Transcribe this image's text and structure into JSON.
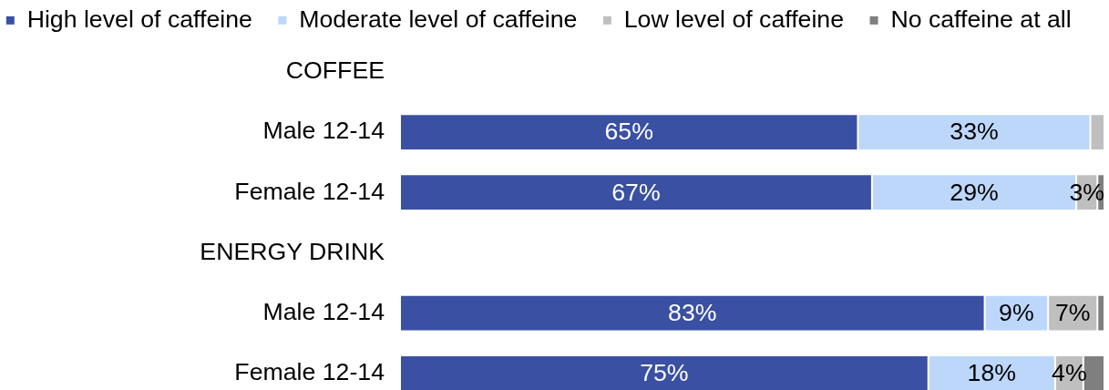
{
  "chart_data": {
    "type": "bar",
    "orientation": "horizontal",
    "stacked": true,
    "categories": [
      "COFFEE",
      "Male 12-14",
      "Female 12-14",
      "ENERGY DRINK",
      "Male 12-14",
      "Female 12-14"
    ],
    "series": [
      {
        "name": "High level of caffeine",
        "color": "#3a50a2",
        "values": [
          null,
          65,
          67,
          null,
          83,
          75
        ],
        "value_labels": [
          null,
          "65%",
          "67%",
          null,
          "83%",
          "75%"
        ]
      },
      {
        "name": "Moderate level of caffeine",
        "color": "#bdd7fb",
        "values": [
          null,
          33,
          29,
          null,
          9,
          18
        ],
        "value_labels": [
          null,
          "33%",
          "29%",
          null,
          "9%",
          "18%"
        ]
      },
      {
        "name": "Low level of caffeine",
        "color": "#bfbfbf",
        "values": [
          null,
          2,
          3,
          null,
          7,
          4
        ],
        "value_labels": [
          null,
          null,
          "3%",
          null,
          "7%",
          "4%"
        ]
      },
      {
        "name": "No caffeine at all",
        "color": "#7f7f7f",
        "values": [
          null,
          null,
          1,
          null,
          1,
          3
        ]
      }
    ],
    "xlim": [
      0,
      100
    ],
    "tick_labels": "y",
    "legend": "top",
    "grid": false
  }
}
